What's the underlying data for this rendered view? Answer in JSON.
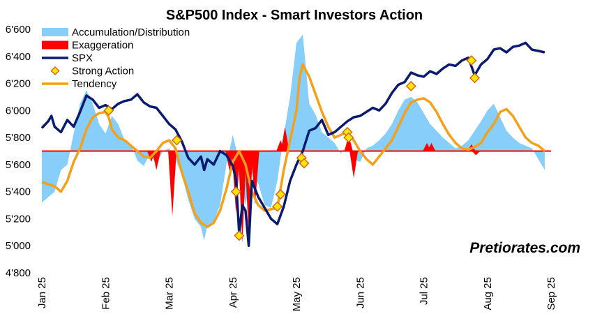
{
  "chart_data": {
    "type": "line",
    "title": "S&P500 Index - Smart Investors Action",
    "ylim": [
      4800,
      6600
    ],
    "yticks": [
      "4'800",
      "5'000",
      "5'200",
      "5'400",
      "5'600",
      "5'800",
      "6'000",
      "6'200",
      "6'400",
      "6'600"
    ],
    "ytick_values": [
      4800,
      5000,
      5200,
      5400,
      5600,
      5800,
      6000,
      6200,
      6400,
      6600
    ],
    "xlim": [
      0,
      8
    ],
    "xticks": [
      "Jan 25",
      "Feb 25",
      "Mar 25",
      "Apr 25",
      "May 25",
      "Jun 25",
      "Jul 25",
      "Aug 25",
      "Sep 25"
    ],
    "baseline": 5700,
    "watermark": "Pretiorates.com",
    "colors": {
      "accumulation": "#87CEFA",
      "exaggeration": "#FF0000",
      "spx": "#0A1A6E",
      "strong_action": "#FFE600",
      "strong_action_edge": "#D2691E",
      "tendency": "#F5A01A",
      "baseline": "#FF0000"
    },
    "legend": [
      {
        "key": "accumulation",
        "label": "Accumulation/Distribution"
      },
      {
        "key": "exaggeration",
        "label": "Exaggeration"
      },
      {
        "key": "spx",
        "label": "SPX"
      },
      {
        "key": "strong_action",
        "label": "Strong Action"
      },
      {
        "key": "tendency",
        "label": "Tendency"
      }
    ],
    "spx": [
      [
        0,
        5870
      ],
      [
        0.1,
        5920
      ],
      [
        0.15,
        5960
      ],
      [
        0.2,
        5880
      ],
      [
        0.3,
        5840
      ],
      [
        0.4,
        5930
      ],
      [
        0.5,
        5880
      ],
      [
        0.6,
        5990
      ],
      [
        0.7,
        6110
      ],
      [
        0.8,
        6080
      ],
      [
        0.9,
        6020
      ],
      [
        1,
        6040
      ],
      [
        1.1,
        6010
      ],
      [
        1.2,
        6050
      ],
      [
        1.3,
        6070
      ],
      [
        1.4,
        6080
      ],
      [
        1.5,
        6120
      ],
      [
        1.6,
        6060
      ],
      [
        1.7,
        6030
      ],
      [
        1.8,
        6020
      ],
      [
        1.9,
        5960
      ],
      [
        2,
        5900
      ],
      [
        2.1,
        5860
      ],
      [
        2.2,
        5770
      ],
      [
        2.3,
        5650
      ],
      [
        2.4,
        5600
      ],
      [
        2.5,
        5660
      ],
      [
        2.55,
        5560
      ],
      [
        2.6,
        5640
      ],
      [
        2.7,
        5600
      ],
      [
        2.8,
        5700
      ],
      [
        2.9,
        5670
      ],
      [
        3,
        5590
      ],
      [
        3.05,
        5490
      ],
      [
        3.1,
        5090
      ],
      [
        3.15,
        5300
      ],
      [
        3.2,
        5260
      ],
      [
        3.25,
        5000
      ],
      [
        3.3,
        5480
      ],
      [
        3.4,
        5360
      ],
      [
        3.5,
        5280
      ],
      [
        3.6,
        5200
      ],
      [
        3.7,
        5160
      ],
      [
        3.8,
        5290
      ],
      [
        3.9,
        5480
      ],
      [
        4,
        5600
      ],
      [
        4.1,
        5700
      ],
      [
        4.2,
        5850
      ],
      [
        4.3,
        5870
      ],
      [
        4.4,
        5930
      ],
      [
        4.5,
        5820
      ],
      [
        4.6,
        5840
      ],
      [
        4.7,
        5880
      ],
      [
        4.8,
        5920
      ],
      [
        4.9,
        5950
      ],
      [
        5,
        5960
      ],
      [
        5.1,
        5990
      ],
      [
        5.2,
        6020
      ],
      [
        5.3,
        6000
      ],
      [
        5.4,
        6050
      ],
      [
        5.5,
        6130
      ],
      [
        5.6,
        6190
      ],
      [
        5.7,
        6210
      ],
      [
        5.8,
        6280
      ],
      [
        5.9,
        6260
      ],
      [
        6,
        6250
      ],
      [
        6.1,
        6290
      ],
      [
        6.2,
        6270
      ],
      [
        6.3,
        6310
      ],
      [
        6.4,
        6340
      ],
      [
        6.5,
        6330
      ],
      [
        6.6,
        6370
      ],
      [
        6.7,
        6390
      ],
      [
        6.8,
        6260
      ],
      [
        6.9,
        6340
      ],
      [
        7,
        6380
      ],
      [
        7.1,
        6450
      ],
      [
        7.2,
        6460
      ],
      [
        7.3,
        6430
      ],
      [
        7.4,
        6470
      ],
      [
        7.5,
        6480
      ],
      [
        7.6,
        6500
      ],
      [
        7.7,
        6450
      ],
      [
        7.8,
        6440
      ],
      [
        7.9,
        6430
      ]
    ],
    "tendency": [
      [
        0,
        5470
      ],
      [
        0.2,
        5440
      ],
      [
        0.3,
        5400
      ],
      [
        0.4,
        5480
      ],
      [
        0.5,
        5620
      ],
      [
        0.6,
        5720
      ],
      [
        0.7,
        5860
      ],
      [
        0.8,
        5950
      ],
      [
        0.9,
        5980
      ],
      [
        1,
        5990
      ],
      [
        1.05,
        5950
      ],
      [
        1.1,
        5860
      ],
      [
        1.2,
        5800
      ],
      [
        1.3,
        5780
      ],
      [
        1.4,
        5740
      ],
      [
        1.5,
        5700
      ],
      [
        1.6,
        5660
      ],
      [
        1.7,
        5650
      ],
      [
        1.8,
        5700
      ],
      [
        1.9,
        5760
      ],
      [
        2,
        5780
      ],
      [
        2.1,
        5720
      ],
      [
        2.2,
        5540
      ],
      [
        2.3,
        5400
      ],
      [
        2.4,
        5240
      ],
      [
        2.5,
        5170
      ],
      [
        2.6,
        5140
      ],
      [
        2.7,
        5170
      ],
      [
        2.8,
        5260
      ],
      [
        2.9,
        5420
      ],
      [
        3,
        5620
      ],
      [
        3.1,
        5700
      ],
      [
        3.2,
        5600
      ],
      [
        3.3,
        5400
      ],
      [
        3.4,
        5300
      ],
      [
        3.5,
        5260
      ],
      [
        3.6,
        5270
      ],
      [
        3.7,
        5280
      ],
      [
        3.8,
        5560
      ],
      [
        3.9,
        5780
      ],
      [
        4,
        6000
      ],
      [
        4.05,
        6250
      ],
      [
        4.1,
        6340
      ],
      [
        4.2,
        6250
      ],
      [
        4.3,
        6120
      ],
      [
        4.4,
        5990
      ],
      [
        4.5,
        5880
      ],
      [
        4.6,
        5800
      ],
      [
        4.7,
        5820
      ],
      [
        4.8,
        5840
      ],
      [
        4.9,
        5780
      ],
      [
        5,
        5700
      ],
      [
        5.1,
        5640
      ],
      [
        5.2,
        5600
      ],
      [
        5.3,
        5660
      ],
      [
        5.4,
        5720
      ],
      [
        5.5,
        5780
      ],
      [
        5.6,
        5880
      ],
      [
        5.7,
        5980
      ],
      [
        5.8,
        6060
      ],
      [
        5.9,
        6080
      ],
      [
        6,
        6090
      ],
      [
        6.1,
        6060
      ],
      [
        6.2,
        5990
      ],
      [
        6.3,
        5900
      ],
      [
        6.4,
        5820
      ],
      [
        6.5,
        5760
      ],
      [
        6.6,
        5720
      ],
      [
        6.7,
        5710
      ],
      [
        6.8,
        5730
      ],
      [
        6.9,
        5760
      ],
      [
        7,
        5840
      ],
      [
        7.1,
        5900
      ],
      [
        7.2,
        5990
      ],
      [
        7.3,
        6010
      ],
      [
        7.4,
        5960
      ],
      [
        7.5,
        5880
      ],
      [
        7.6,
        5800
      ],
      [
        7.7,
        5760
      ],
      [
        7.8,
        5740
      ],
      [
        7.9,
        5700
      ]
    ],
    "accumulation": [
      [
        0,
        5320
      ],
      [
        0.2,
        5400
      ],
      [
        0.3,
        5560
      ],
      [
        0.4,
        5600
      ],
      [
        0.5,
        5830
      ],
      [
        0.6,
        6050
      ],
      [
        0.7,
        6150
      ],
      [
        0.8,
        6050
      ],
      [
        0.9,
        5900
      ],
      [
        1,
        5830
      ],
      [
        1.1,
        5960
      ],
      [
        1.2,
        5900
      ],
      [
        1.3,
        5780
      ],
      [
        1.4,
        5750
      ],
      [
        1.5,
        5630
      ],
      [
        1.6,
        5590
      ],
      [
        1.7,
        5680
      ],
      [
        1.8,
        5600
      ],
      [
        1.9,
        5700
      ],
      [
        2,
        5720
      ],
      [
        2.1,
        5640
      ],
      [
        2.2,
        5520
      ],
      [
        2.3,
        5340
      ],
      [
        2.4,
        5200
      ],
      [
        2.5,
        5140
      ],
      [
        2.55,
        5040
      ],
      [
        2.6,
        5150
      ],
      [
        2.7,
        5180
      ],
      [
        2.8,
        5300
      ],
      [
        2.9,
        5600
      ],
      [
        3,
        5820
      ],
      [
        3.1,
        5620
      ],
      [
        3.2,
        5300
      ],
      [
        3.3,
        5540
      ],
      [
        3.4,
        5460
      ],
      [
        3.5,
        5300
      ],
      [
        3.6,
        5280
      ],
      [
        3.7,
        5480
      ],
      [
        3.8,
        5820
      ],
      [
        3.9,
        6100
      ],
      [
        4,
        6500
      ],
      [
        4.1,
        6560
      ],
      [
        4.2,
        6050
      ],
      [
        4.3,
        5970
      ],
      [
        4.4,
        5840
      ],
      [
        4.5,
        5800
      ],
      [
        4.6,
        5760
      ],
      [
        4.7,
        5680
      ],
      [
        4.8,
        5750
      ],
      [
        4.9,
        5640
      ],
      [
        5,
        5620
      ],
      [
        5.1,
        5720
      ],
      [
        5.2,
        5740
      ],
      [
        5.3,
        5780
      ],
      [
        5.4,
        5830
      ],
      [
        5.5,
        5900
      ],
      [
        5.6,
        6000
      ],
      [
        5.7,
        6080
      ],
      [
        5.8,
        6100
      ],
      [
        5.9,
        6060
      ],
      [
        6,
        5980
      ],
      [
        6.1,
        5900
      ],
      [
        6.2,
        5850
      ],
      [
        6.3,
        5800
      ],
      [
        6.4,
        5760
      ],
      [
        6.5,
        5720
      ],
      [
        6.6,
        5740
      ],
      [
        6.7,
        5780
      ],
      [
        6.8,
        5850
      ],
      [
        6.9,
        5920
      ],
      [
        7,
        6000
      ],
      [
        7.1,
        6050
      ],
      [
        7.2,
        5950
      ],
      [
        7.3,
        5850
      ],
      [
        7.4,
        5800
      ],
      [
        7.5,
        5760
      ],
      [
        7.6,
        5740
      ],
      [
        7.7,
        5720
      ],
      [
        7.8,
        5640
      ],
      [
        7.9,
        5560
      ]
    ],
    "exaggeration": [
      [
        1.72,
        5700,
        5620
      ],
      [
        1.8,
        5700,
        5560
      ],
      [
        2.05,
        5700,
        5220
      ],
      [
        2.95,
        5700,
        5550
      ],
      [
        3.05,
        5700,
        5240
      ],
      [
        3.15,
        5700,
        5020
      ],
      [
        3.25,
        5700,
        5080
      ],
      [
        3.35,
        5700,
        5300
      ],
      [
        3.75,
        5700,
        5780
      ],
      [
        3.82,
        5700,
        5880
      ],
      [
        4.82,
        5700,
        5820
      ],
      [
        4.9,
        5700,
        5500
      ],
      [
        6.05,
        5700,
        5760
      ],
      [
        6.12,
        5700,
        5760
      ],
      [
        6.75,
        5700,
        5750
      ],
      [
        6.82,
        5700,
        5670
      ]
    ],
    "strong_action": [
      [
        1.05,
        6000
      ],
      [
        2.12,
        5780
      ],
      [
        3.05,
        5400
      ],
      [
        3.1,
        5075
      ],
      [
        3.7,
        5290
      ],
      [
        3.75,
        5380
      ],
      [
        4.08,
        5650
      ],
      [
        4.12,
        5610
      ],
      [
        4.8,
        5840
      ],
      [
        4.82,
        5800
      ],
      [
        5.8,
        6180
      ],
      [
        6.75,
        6370
      ],
      [
        6.8,
        6240
      ]
    ]
  }
}
